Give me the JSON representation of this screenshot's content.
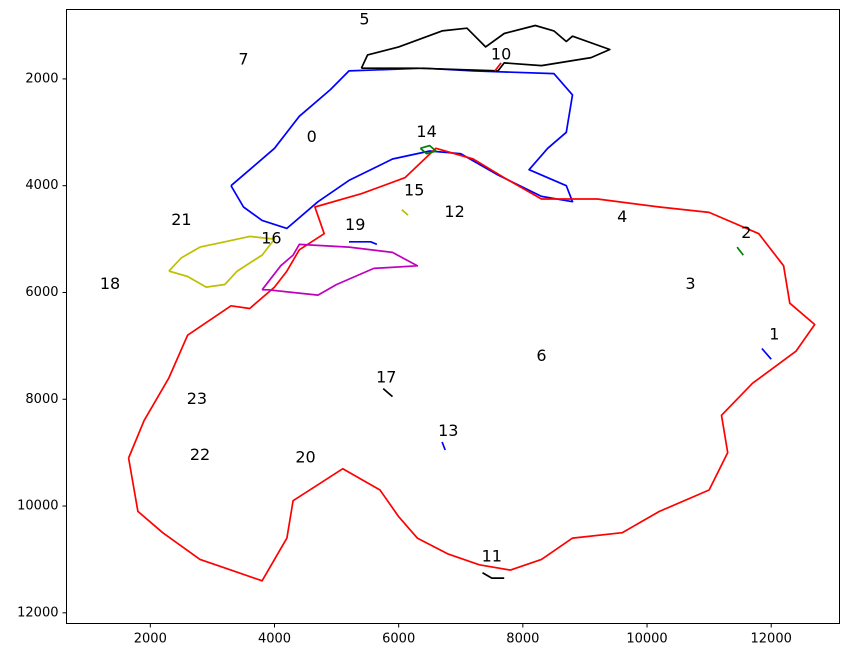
{
  "chart_data": {
    "type": "contour",
    "title": "",
    "xlabel": "",
    "ylabel": "",
    "xlim": [
      650,
      13100
    ],
    "ylim": [
      12200,
      700
    ],
    "y_inverted": true,
    "grid": false,
    "x_ticks": [
      2000,
      4000,
      6000,
      8000,
      10000,
      12000
    ],
    "y_ticks": [
      2000,
      4000,
      6000,
      8000,
      10000,
      12000
    ],
    "colors": {
      "red": "#ff0000",
      "blue": "#0000ff",
      "black": "#000000",
      "magenta": "#bf00bf",
      "yellow": "#bfbf00",
      "green": "#008000"
    },
    "regions": [
      {
        "label": "0",
        "color": "blue",
        "x": 4600,
        "y": 3100,
        "outline": [
          [
            3300,
            4000
          ],
          [
            3600,
            3700
          ],
          [
            4000,
            3300
          ],
          [
            4400,
            2700
          ],
          [
            4900,
            2200
          ],
          [
            5200,
            1850
          ],
          [
            6400,
            1800
          ],
          [
            7200,
            1850
          ],
          [
            8500,
            1900
          ],
          [
            8800,
            2300
          ],
          [
            8700,
            3000
          ],
          [
            8400,
            3300
          ],
          [
            8100,
            3700
          ],
          [
            8700,
            4000
          ],
          [
            8800,
            4300
          ],
          [
            8300,
            4200
          ],
          [
            7600,
            3800
          ],
          [
            7000,
            3400
          ],
          [
            6500,
            3350
          ],
          [
            5900,
            3500
          ],
          [
            5200,
            3900
          ],
          [
            4700,
            4300
          ],
          [
            4200,
            4800
          ],
          [
            3800,
            4650
          ],
          [
            3500,
            4400
          ],
          [
            3300,
            4000
          ]
        ]
      },
      {
        "label": "1",
        "color": "blue",
        "x": 12050,
        "y": 6800,
        "outline": [
          [
            11850,
            7050
          ],
          [
            12000,
            7250
          ]
        ]
      },
      {
        "label": "2",
        "color": "green",
        "x": 11600,
        "y": 4900,
        "outline": [
          [
            11450,
            5150
          ],
          [
            11550,
            5300
          ]
        ]
      },
      {
        "label": "3",
        "color": "red",
        "x": 10700,
        "y": 5850,
        "outline": []
      },
      {
        "label": "4",
        "color": "red",
        "x": 9600,
        "y": 4600,
        "outline": []
      },
      {
        "label": "5",
        "color": "black",
        "x": 5450,
        "y": 900,
        "outline": [
          [
            5400,
            1800
          ],
          [
            5500,
            1550
          ],
          [
            6000,
            1400
          ],
          [
            6700,
            1100
          ],
          [
            7100,
            1050
          ],
          [
            7400,
            1400
          ],
          [
            7700,
            1150
          ],
          [
            8200,
            1000
          ],
          [
            8500,
            1100
          ],
          [
            8700,
            1300
          ],
          [
            8800,
            1200
          ],
          [
            9400,
            1450
          ],
          [
            9100,
            1600
          ],
          [
            8300,
            1750
          ],
          [
            7700,
            1700
          ],
          [
            7600,
            1850
          ],
          [
            6300,
            1800
          ],
          [
            5400,
            1800
          ]
        ]
      },
      {
        "label": "6",
        "color": "red",
        "x": 8300,
        "y": 7200,
        "outline": [
          [
            1650,
            9100
          ],
          [
            1900,
            8400
          ],
          [
            2300,
            7600
          ],
          [
            2600,
            6800
          ],
          [
            3300,
            6250
          ],
          [
            3600,
            6300
          ],
          [
            4000,
            5900
          ],
          [
            4200,
            5600
          ],
          [
            4400,
            5200
          ],
          [
            4800,
            4900
          ],
          [
            4650,
            4400
          ],
          [
            5400,
            4150
          ],
          [
            6100,
            3850
          ],
          [
            6600,
            3300
          ],
          [
            7200,
            3500
          ],
          [
            7700,
            3850
          ],
          [
            8300,
            4250
          ],
          [
            9200,
            4250
          ],
          [
            10200,
            4400
          ],
          [
            11000,
            4500
          ],
          [
            11800,
            4900
          ],
          [
            12200,
            5500
          ],
          [
            12300,
            6200
          ],
          [
            12700,
            6600
          ],
          [
            12400,
            7100
          ],
          [
            11700,
            7700
          ],
          [
            11200,
            8300
          ],
          [
            11300,
            9000
          ],
          [
            11000,
            9700
          ],
          [
            10200,
            10100
          ],
          [
            9600,
            10500
          ],
          [
            8800,
            10600
          ],
          [
            8300,
            11000
          ],
          [
            7800,
            11200
          ],
          [
            7300,
            11100
          ],
          [
            6800,
            10900
          ],
          [
            6300,
            10600
          ],
          [
            6000,
            10200
          ],
          [
            5700,
            9700
          ],
          [
            5100,
            9300
          ],
          [
            4700,
            9600
          ],
          [
            4300,
            9900
          ],
          [
            4200,
            10600
          ],
          [
            3800,
            11400
          ],
          [
            3300,
            11200
          ],
          [
            2800,
            11000
          ],
          [
            2200,
            10500
          ],
          [
            1800,
            10100
          ],
          [
            1650,
            9100
          ]
        ]
      },
      {
        "label": "7",
        "color": "red",
        "x": 3500,
        "y": 1650,
        "outline": []
      },
      {
        "label": "10",
        "color": "red",
        "x": 7650,
        "y": 1550,
        "outline": [
          [
            7550,
            1850
          ],
          [
            7650,
            1700
          ]
        ]
      },
      {
        "label": "11",
        "color": "black",
        "x": 7500,
        "y": 10950,
        "outline": [
          [
            7350,
            11250
          ],
          [
            7500,
            11350
          ],
          [
            7700,
            11350
          ]
        ]
      },
      {
        "label": "12",
        "color": "red",
        "x": 6900,
        "y": 4500,
        "outline": []
      },
      {
        "label": "13",
        "color": "blue",
        "x": 6800,
        "y": 8600,
        "outline": [
          [
            6700,
            8800
          ],
          [
            6750,
            8950
          ]
        ]
      },
      {
        "label": "14",
        "color": "green",
        "x": 6450,
        "y": 3000,
        "outline": [
          [
            6350,
            3300
          ],
          [
            6500,
            3250
          ],
          [
            6600,
            3350
          ],
          [
            6450,
            3400
          ],
          [
            6350,
            3300
          ]
        ]
      },
      {
        "label": "15",
        "color": "yellow",
        "x": 6250,
        "y": 4100,
        "outline": [
          [
            6050,
            4450
          ],
          [
            6150,
            4550
          ]
        ]
      },
      {
        "label": "16",
        "color": "magenta",
        "x": 3950,
        "y": 5000,
        "outline": [
          [
            3800,
            5950
          ],
          [
            4100,
            5500
          ],
          [
            4300,
            5300
          ],
          [
            4400,
            5100
          ],
          [
            5200,
            5150
          ],
          [
            5900,
            5250
          ],
          [
            6300,
            5500
          ],
          [
            5600,
            5550
          ],
          [
            5000,
            5850
          ],
          [
            4700,
            6050
          ],
          [
            4300,
            6000
          ],
          [
            3900,
            5950
          ],
          [
            3800,
            5950
          ]
        ]
      },
      {
        "label": "17",
        "color": "black",
        "x": 5800,
        "y": 7600,
        "outline": [
          [
            5750,
            7800
          ],
          [
            5900,
            7950
          ]
        ]
      },
      {
        "label": "18",
        "color": "red",
        "x": 1350,
        "y": 5850,
        "outline": []
      },
      {
        "label": "19",
        "color": "blue",
        "x": 5300,
        "y": 4750,
        "outline": [
          [
            5200,
            5050
          ],
          [
            5550,
            5050
          ],
          [
            5650,
            5100
          ]
        ]
      },
      {
        "label": "20",
        "color": "red",
        "x": 4500,
        "y": 9100,
        "outline": []
      },
      {
        "label": "21",
        "color": "red",
        "x": 2500,
        "y": 4650,
        "outline": []
      },
      {
        "label": "22",
        "color": "red",
        "x": 2800,
        "y": 9050,
        "outline": []
      },
      {
        "label": "23",
        "color": "red",
        "x": 2750,
        "y": 8000,
        "outline": []
      },
      {
        "label": "",
        "color": "yellow",
        "x": null,
        "y": null,
        "outline": [
          [
            2300,
            5600
          ],
          [
            2500,
            5350
          ],
          [
            2800,
            5150
          ],
          [
            3200,
            5050
          ],
          [
            3600,
            4950
          ],
          [
            4000,
            5000
          ],
          [
            3800,
            5300
          ],
          [
            3400,
            5600
          ],
          [
            3200,
            5850
          ],
          [
            2900,
            5900
          ],
          [
            2600,
            5700
          ],
          [
            2300,
            5600
          ]
        ]
      }
    ]
  }
}
